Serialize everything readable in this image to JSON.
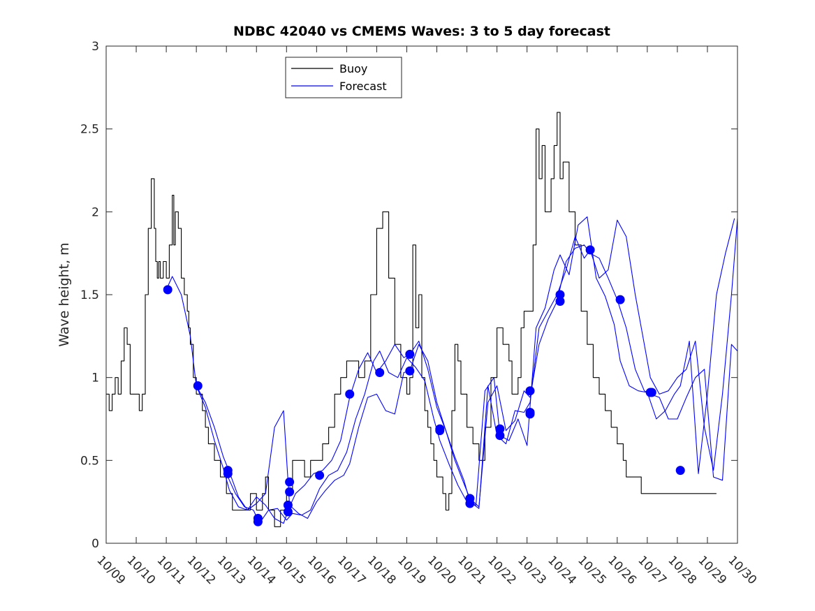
{
  "chart_data": {
    "type": "line",
    "title": "NDBC 42040 vs CMEMS Waves: 3 to 5 day forecast",
    "xlabel": "",
    "ylabel": "Wave height, m",
    "xlim": [
      0,
      21
    ],
    "ylim": [
      0,
      3
    ],
    "x_tick_labels": [
      "10/09",
      "10/10",
      "10/11",
      "10/12",
      "10/13",
      "10/14",
      "10/15",
      "10/16",
      "10/17",
      "10/18",
      "10/19",
      "10/20",
      "10/21",
      "10/22",
      "10/23",
      "10/24",
      "10/25",
      "10/26",
      "10/27",
      "10/28",
      "10/29",
      "10/30"
    ],
    "y_ticks": [
      0,
      0.5,
      1,
      1.5,
      2,
      2.5,
      3
    ],
    "y_tick_labels": [
      "0",
      "0.5",
      "1",
      "1.5",
      "2",
      "2.5",
      "3"
    ],
    "grid": false,
    "legend": {
      "location": "top-center",
      "entries": [
        {
          "label": "Buoy",
          "color": "#000000"
        },
        {
          "label": "Forecast",
          "color": "#0000ff"
        }
      ]
    },
    "colors": {
      "buoy": "#000000",
      "forecast": "#0000ff",
      "markers": "#0000ff",
      "axis": "#262626"
    },
    "series": [
      {
        "name": "Buoy",
        "style": "step",
        "x": [
          0,
          0.1,
          0.2,
          0.3,
          0.4,
          0.5,
          0.6,
          0.7,
          0.8,
          0.9,
          1.0,
          1.1,
          1.2,
          1.3,
          1.4,
          1.5,
          1.6,
          1.65,
          1.7,
          1.75,
          1.8,
          1.9,
          2.0,
          2.1,
          2.2,
          2.25,
          2.3,
          2.4,
          2.5,
          2.55,
          2.6,
          2.7,
          2.75,
          2.8,
          2.9,
          3.0,
          3.1,
          3.2,
          3.3,
          3.4,
          3.5,
          3.6,
          3.7,
          3.8,
          3.9,
          4.0,
          4.2,
          4.4,
          4.6,
          4.8,
          5.0,
          5.2,
          5.3,
          5.4,
          5.5,
          5.6,
          5.7,
          5.8,
          6.0,
          6.2,
          6.4,
          6.6,
          6.8,
          7.0,
          7.2,
          7.4,
          7.6,
          7.8,
          8.0,
          8.2,
          8.4,
          8.6,
          8.8,
          9.0,
          9.2,
          9.4,
          9.6,
          9.8,
          10.0,
          10.1,
          10.2,
          10.3,
          10.4,
          10.5,
          10.6,
          10.7,
          10.8,
          10.9,
          11.0,
          11.1,
          11.2,
          11.3,
          11.4,
          11.5,
          11.6,
          11.7,
          11.8,
          12.0,
          12.2,
          12.4,
          12.6,
          12.8,
          13.0,
          13.2,
          13.4,
          13.5,
          13.6,
          13.7,
          13.8,
          13.9,
          14.0,
          14.2,
          14.3,
          14.4,
          14.5,
          14.6,
          14.8,
          14.9,
          15.0,
          15.1,
          15.2,
          15.4,
          15.6,
          15.8,
          16.0,
          16.2,
          16.4,
          16.6,
          16.8,
          17.0,
          17.2,
          17.3,
          17.4,
          17.6,
          17.8,
          18.0,
          18.2,
          18.4,
          18.6,
          18.8,
          19.0,
          19.2,
          19.4,
          19.6,
          19.8,
          20.0,
          20.2
        ],
        "values": [
          0.9,
          0.8,
          0.9,
          1.0,
          0.9,
          1.1,
          1.3,
          1.2,
          0.9,
          0.9,
          0.9,
          0.8,
          0.9,
          1.5,
          1.9,
          2.2,
          1.9,
          1.7,
          1.6,
          1.7,
          1.6,
          1.7,
          1.6,
          1.8,
          2.1,
          1.8,
          2.0,
          1.9,
          1.6,
          1.6,
          1.5,
          1.4,
          1.3,
          1.2,
          1.0,
          0.9,
          0.9,
          0.8,
          0.7,
          0.6,
          0.6,
          0.5,
          0.5,
          0.4,
          0.4,
          0.3,
          0.2,
          0.2,
          0.2,
          0.3,
          0.2,
          0.3,
          0.4,
          0.2,
          0.2,
          0.1,
          0.1,
          0.2,
          0.3,
          0.5,
          0.5,
          0.4,
          0.5,
          0.5,
          0.6,
          0.7,
          0.9,
          1.0,
          1.1,
          1.1,
          1.0,
          1.1,
          1.5,
          1.9,
          2.0,
          1.6,
          1.2,
          1.0,
          0.9,
          1.0,
          1.8,
          1.3,
          1.5,
          1.0,
          0.8,
          0.7,
          0.6,
          0.5,
          0.4,
          0.4,
          0.3,
          0.2,
          0.3,
          0.8,
          1.2,
          1.1,
          0.9,
          0.7,
          0.6,
          0.5,
          0.7,
          1.0,
          1.3,
          1.2,
          1.1,
          0.9,
          0.9,
          1.0,
          1.3,
          1.4,
          1.4,
          1.8,
          2.5,
          2.2,
          2.4,
          2.0,
          2.2,
          2.4,
          2.6,
          2.2,
          2.3,
          2.0,
          1.8,
          1.4,
          1.2,
          1.0,
          0.9,
          0.8,
          0.7,
          0.6,
          0.5,
          0.4,
          0.4,
          0.4,
          0.3,
          0.3,
          0.3,
          0.3,
          0.3,
          0.3,
          0.3,
          0.3,
          0.3,
          0.3,
          0.3,
          0.3,
          0.3
        ]
      },
      {
        "name": "Forecast 1",
        "x": [
          2.0,
          2.2,
          2.5,
          2.8,
          3.0,
          3.3,
          3.6,
          3.9,
          4.1,
          4.4,
          4.7,
          5.0,
          5.3,
          5.6,
          5.9,
          6.1,
          6.3,
          6.6,
          6.9,
          7.2,
          7.5,
          7.8,
          8.1,
          8.4,
          8.7,
          9.0,
          9.3,
          9.6,
          9.9,
          10.1,
          10.4,
          10.7,
          11.0,
          11.3,
          11.6,
          11.9,
          12.1,
          12.4,
          12.7,
          13.0,
          13.3,
          13.6,
          13.9,
          14.1,
          14.4,
          14.7,
          15.0,
          15.3,
          15.6,
          15.9,
          16.1,
          16.4,
          16.7,
          17.0,
          17.3,
          17.6,
          17.9,
          18.1,
          18.4,
          18.7,
          19.0,
          19.3,
          19.6,
          19.9,
          20.2,
          20.5,
          20.8,
          21.0
        ],
        "values": [
          1.53,
          1.61,
          1.5,
          1.25,
          0.95,
          0.82,
          0.62,
          0.45,
          0.32,
          0.22,
          0.2,
          0.28,
          0.23,
          0.15,
          0.12,
          0.22,
          0.3,
          0.35,
          0.42,
          0.44,
          0.5,
          0.62,
          0.88,
          1.05,
          1.15,
          1.03,
          1.1,
          1.2,
          1.12,
          1.14,
          1.22,
          1.05,
          0.82,
          0.68,
          0.5,
          0.36,
          0.27,
          0.22,
          0.85,
          0.95,
          0.68,
          0.74,
          0.92,
          0.88,
          1.2,
          1.35,
          1.46,
          1.7,
          1.78,
          1.8,
          1.75,
          1.72,
          1.6,
          1.47,
          1.3,
          1.05,
          0.92,
          0.9,
          0.88,
          0.75,
          0.75,
          0.88,
          1.0,
          1.05,
          0.4,
          0.38,
          1.2,
          1.16
        ]
      },
      {
        "name": "Forecast 2",
        "x": [
          3.0,
          3.3,
          3.6,
          3.9,
          4.1,
          4.4,
          4.7,
          5.0,
          5.3,
          5.6,
          5.9,
          6.1,
          6.4,
          6.7,
          7.0,
          7.3,
          7.6,
          7.9,
          8.1,
          8.4,
          8.7,
          9.0,
          9.3,
          9.6,
          9.9,
          10.1,
          10.4,
          10.7,
          11.0,
          11.3,
          11.6,
          11.9,
          12.1,
          12.4,
          12.7,
          13.0,
          13.3,
          13.6,
          13.9,
          14.1,
          14.4,
          14.7,
          15.0,
          15.3,
          15.6,
          15.9,
          16.1,
          16.4,
          16.7,
          17.0,
          17.3,
          17.6,
          17.9,
          18.1,
          18.4,
          18.7,
          19.0,
          19.3,
          19.6,
          19.9,
          20.2,
          20.5,
          20.8,
          21.0
        ],
        "values": [
          0.95,
          0.85,
          0.7,
          0.52,
          0.43,
          0.28,
          0.2,
          0.24,
          0.3,
          0.7,
          0.8,
          0.23,
          0.18,
          0.15,
          0.25,
          0.32,
          0.38,
          0.41,
          0.48,
          0.7,
          0.88,
          0.9,
          0.8,
          0.78,
          1.03,
          1.04,
          1.2,
          1.1,
          0.85,
          0.68,
          0.52,
          0.38,
          0.25,
          0.21,
          0.95,
          0.65,
          0.6,
          0.8,
          0.79,
          0.85,
          1.3,
          1.4,
          1.5,
          1.65,
          1.85,
          1.72,
          1.77,
          1.6,
          1.65,
          1.95,
          1.85,
          1.5,
          1.2,
          1.0,
          0.9,
          0.92,
          1.0,
          1.05,
          1.22,
          0.7,
          0.44,
          0.9,
          1.5,
          1.96
        ]
      },
      {
        "name": "Forecast 3",
        "x": [
          4.0,
          4.3,
          4.6,
          4.9,
          5.1,
          5.4,
          5.7,
          6.0,
          6.2,
          6.5,
          6.8,
          7.1,
          7.4,
          7.7,
          8.0,
          8.3,
          8.6,
          8.9,
          9.1,
          9.4,
          9.7,
          10.0,
          10.3,
          10.6,
          10.9,
          11.1,
          11.4,
          11.7,
          12.0,
          12.3,
          12.6,
          12.9,
          13.1,
          13.4,
          13.7,
          14.0,
          14.3,
          14.6,
          14.9,
          15.1,
          15.4,
          15.7,
          16.0,
          16.3,
          16.6,
          16.9,
          17.1,
          17.4,
          17.7,
          18.0,
          18.3,
          18.6,
          18.9,
          19.1,
          19.4,
          19.7,
          20.0,
          20.3,
          20.6,
          20.9
        ],
        "values": [
          0.42,
          0.3,
          0.22,
          0.2,
          0.12,
          0.2,
          0.21,
          0.14,
          0.18,
          0.17,
          0.2,
          0.33,
          0.41,
          0.44,
          0.55,
          0.75,
          0.9,
          1.1,
          1.16,
          1.03,
          1.0,
          1.12,
          1.06,
          0.98,
          0.75,
          0.62,
          0.48,
          0.35,
          0.25,
          0.23,
          0.92,
          1.0,
          0.65,
          0.62,
          0.75,
          0.59,
          1.3,
          1.42,
          1.65,
          1.74,
          1.62,
          1.92,
          1.97,
          1.6,
          1.49,
          1.32,
          1.1,
          0.95,
          0.92,
          0.91,
          0.75,
          0.8,
          0.9,
          0.95,
          1.22,
          0.42,
          0.9,
          1.5,
          1.75,
          1.96
        ]
      }
    ],
    "markers": {
      "x": [
        2.05,
        3.05,
        4.05,
        4.05,
        5.05,
        5.05,
        6.05,
        6.05,
        6.1,
        6.1,
        7.1,
        8.1,
        9.1,
        10.1,
        10.1,
        11.1,
        11.1,
        12.1,
        12.1,
        13.1,
        13.1,
        14.1,
        14.1,
        14.1,
        15.1,
        15.1,
        16.1,
        17.1,
        18.1,
        18.15,
        19.1
      ],
      "values": [
        1.53,
        0.95,
        0.44,
        0.42,
        0.15,
        0.13,
        0.23,
        0.19,
        0.37,
        0.31,
        0.41,
        0.9,
        1.03,
        1.14,
        1.04,
        0.69,
        0.68,
        0.27,
        0.24,
        0.69,
        0.65,
        0.92,
        0.79,
        0.78,
        1.5,
        1.46,
        1.77,
        1.47,
        0.91,
        0.91,
        0.44
      ]
    }
  }
}
